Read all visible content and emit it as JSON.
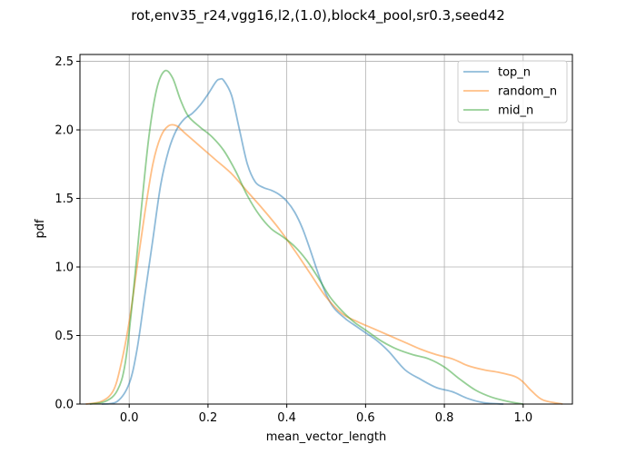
{
  "chart_data": {
    "type": "line",
    "title": "rot,env35_r24,vgg16,l2,(1.0),block4_pool,sr0.3,seed42",
    "xlabel": "mean_vector_length",
    "ylabel": "pdf",
    "xlim": [
      -0.125,
      1.125
    ],
    "ylim": [
      0,
      2.55
    ],
    "xticks": [
      "0.0",
      "0.2",
      "0.4",
      "0.6",
      "0.8",
      "1.0"
    ],
    "xtick_values": [
      0.0,
      0.2,
      0.4,
      0.6,
      0.8,
      1.0
    ],
    "yticks": [
      "0.0",
      "0.5",
      "1.0",
      "1.5",
      "2.0",
      "2.5"
    ],
    "ytick_values": [
      0.0,
      0.5,
      1.0,
      1.5,
      2.0,
      2.5
    ],
    "grid": true,
    "legend_position": "top-right",
    "series": [
      {
        "name": "top_n",
        "color": "#1f77b4",
        "points": [
          [
            -0.07,
            0.0
          ],
          [
            -0.03,
            0.02
          ],
          [
            0.0,
            0.15
          ],
          [
            0.02,
            0.4
          ],
          [
            0.04,
            0.8
          ],
          [
            0.06,
            1.2
          ],
          [
            0.08,
            1.6
          ],
          [
            0.1,
            1.85
          ],
          [
            0.12,
            2.0
          ],
          [
            0.14,
            2.08
          ],
          [
            0.16,
            2.12
          ],
          [
            0.18,
            2.18
          ],
          [
            0.2,
            2.26
          ],
          [
            0.22,
            2.35
          ],
          [
            0.23,
            2.37
          ],
          [
            0.24,
            2.36
          ],
          [
            0.26,
            2.25
          ],
          [
            0.28,
            2.0
          ],
          [
            0.3,
            1.75
          ],
          [
            0.32,
            1.62
          ],
          [
            0.34,
            1.58
          ],
          [
            0.36,
            1.56
          ],
          [
            0.38,
            1.53
          ],
          [
            0.4,
            1.48
          ],
          [
            0.42,
            1.4
          ],
          [
            0.44,
            1.28
          ],
          [
            0.46,
            1.12
          ],
          [
            0.48,
            0.95
          ],
          [
            0.5,
            0.8
          ],
          [
            0.52,
            0.7
          ],
          [
            0.55,
            0.62
          ],
          [
            0.58,
            0.56
          ],
          [
            0.6,
            0.52
          ],
          [
            0.63,
            0.46
          ],
          [
            0.66,
            0.38
          ],
          [
            0.7,
            0.25
          ],
          [
            0.74,
            0.18
          ],
          [
            0.78,
            0.12
          ],
          [
            0.82,
            0.09
          ],
          [
            0.86,
            0.04
          ],
          [
            0.9,
            0.01
          ],
          [
            0.95,
            0.0
          ]
        ]
      },
      {
        "name": "random_n",
        "color": "#ff7f0e",
        "points": [
          [
            -0.11,
            0.0
          ],
          [
            -0.07,
            0.02
          ],
          [
            -0.04,
            0.1
          ],
          [
            -0.02,
            0.3
          ],
          [
            0.0,
            0.6
          ],
          [
            0.02,
            1.0
          ],
          [
            0.04,
            1.4
          ],
          [
            0.06,
            1.75
          ],
          [
            0.08,
            1.95
          ],
          [
            0.1,
            2.03
          ],
          [
            0.12,
            2.03
          ],
          [
            0.14,
            1.98
          ],
          [
            0.18,
            1.88
          ],
          [
            0.22,
            1.78
          ],
          [
            0.26,
            1.68
          ],
          [
            0.3,
            1.55
          ],
          [
            0.34,
            1.42
          ],
          [
            0.38,
            1.28
          ],
          [
            0.42,
            1.12
          ],
          [
            0.46,
            0.95
          ],
          [
            0.5,
            0.78
          ],
          [
            0.54,
            0.66
          ],
          [
            0.58,
            0.6
          ],
          [
            0.62,
            0.55
          ],
          [
            0.66,
            0.5
          ],
          [
            0.7,
            0.45
          ],
          [
            0.74,
            0.4
          ],
          [
            0.78,
            0.36
          ],
          [
            0.82,
            0.33
          ],
          [
            0.86,
            0.28
          ],
          [
            0.9,
            0.25
          ],
          [
            0.94,
            0.23
          ],
          [
            0.98,
            0.2
          ],
          [
            1.0,
            0.16
          ],
          [
            1.02,
            0.1
          ],
          [
            1.05,
            0.03
          ],
          [
            1.1,
            0.0
          ]
        ]
      },
      {
        "name": "mid_n",
        "color": "#2ca02c",
        "points": [
          [
            -0.1,
            0.0
          ],
          [
            -0.06,
            0.02
          ],
          [
            -0.03,
            0.1
          ],
          [
            -0.01,
            0.3
          ],
          [
            0.01,
            0.8
          ],
          [
            0.03,
            1.4
          ],
          [
            0.05,
            1.95
          ],
          [
            0.07,
            2.3
          ],
          [
            0.09,
            2.43
          ],
          [
            0.11,
            2.38
          ],
          [
            0.13,
            2.22
          ],
          [
            0.15,
            2.1
          ],
          [
            0.18,
            2.02
          ],
          [
            0.21,
            1.95
          ],
          [
            0.24,
            1.85
          ],
          [
            0.27,
            1.7
          ],
          [
            0.3,
            1.52
          ],
          [
            0.33,
            1.38
          ],
          [
            0.36,
            1.28
          ],
          [
            0.39,
            1.22
          ],
          [
            0.42,
            1.15
          ],
          [
            0.45,
            1.05
          ],
          [
            0.48,
            0.92
          ],
          [
            0.51,
            0.78
          ],
          [
            0.54,
            0.68
          ],
          [
            0.57,
            0.6
          ],
          [
            0.6,
            0.54
          ],
          [
            0.64,
            0.46
          ],
          [
            0.68,
            0.4
          ],
          [
            0.72,
            0.36
          ],
          [
            0.76,
            0.33
          ],
          [
            0.8,
            0.27
          ],
          [
            0.84,
            0.18
          ],
          [
            0.88,
            0.1
          ],
          [
            0.92,
            0.05
          ],
          [
            0.96,
            0.02
          ],
          [
            1.0,
            0.0
          ]
        ]
      }
    ]
  }
}
